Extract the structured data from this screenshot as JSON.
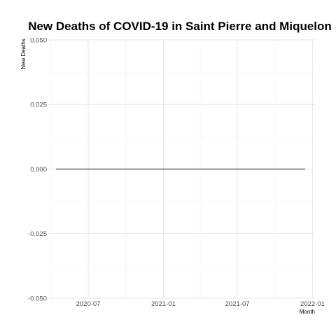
{
  "chart_data": {
    "type": "line",
    "title": "New Deaths of COVID-19 in Saint Pierre and Miquelon",
    "xlabel": "Month",
    "ylabel": "New Deaths",
    "x_range": [
      "2020-03-27",
      "2022-01-07"
    ],
    "x_ticks": [
      {
        "date": "2020-07-01",
        "label": "2020-07"
      },
      {
        "date": "2021-01-01",
        "label": "2021-01"
      },
      {
        "date": "2021-07-01",
        "label": "2021-07"
      },
      {
        "date": "2022-01-01",
        "label": "2022-01"
      }
    ],
    "x_minor_ticks": [
      "2020-04-01",
      "2020-10-01",
      "2021-04-01",
      "2021-10-01"
    ],
    "ylim": [
      -0.05,
      0.05
    ],
    "y_ticks": [
      {
        "value": 0.05,
        "label": "0.050"
      },
      {
        "value": 0.025,
        "label": "0.025"
      },
      {
        "value": 0,
        "label": "0.000"
      },
      {
        "value": -0.025,
        "label": "-0.025"
      },
      {
        "value": -0.05,
        "label": "-0.050"
      }
    ],
    "y_minor_ticks": [
      0.0375,
      0.0125,
      -0.0125,
      -0.0375
    ],
    "grid": true,
    "line_color": "#000000",
    "series": [
      {
        "x": [
          "2020-04-13",
          "2021-12-14"
        ],
        "values": [
          0,
          0
        ]
      }
    ]
  }
}
